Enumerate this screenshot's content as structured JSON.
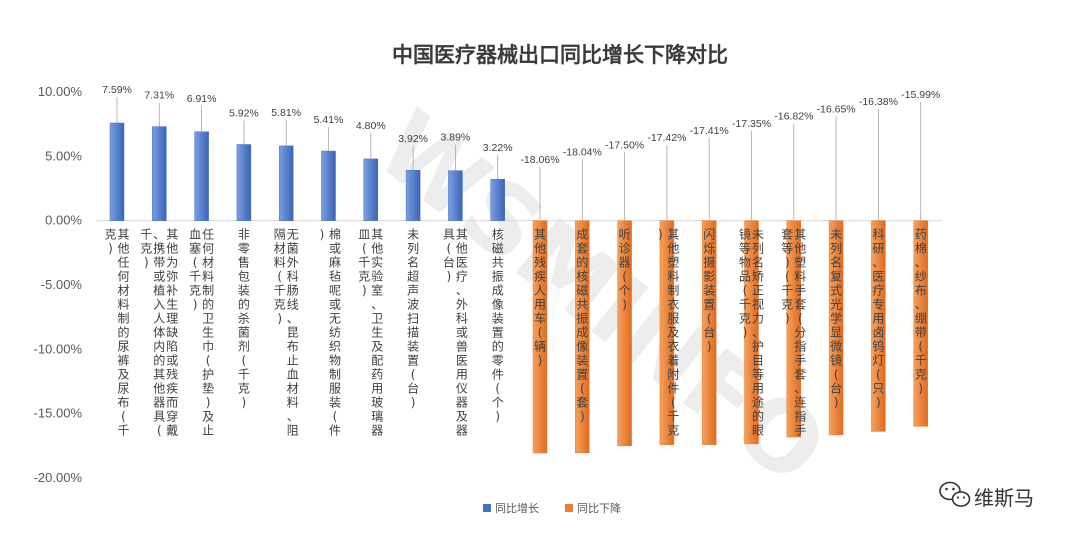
{
  "chart_data": {
    "type": "bar",
    "title": "中国医疗器械出口同比增长下降对比",
    "xlabel": "",
    "ylabel": "",
    "ylim": [
      -0.2,
      0.1
    ],
    "yticks": [
      "10.00%",
      "5.00%",
      "0.00%",
      "-5.00%",
      "-10.00%",
      "-15.00%",
      "-20.00%"
    ],
    "categories": [
      "其他任何材料制的尿裤及尿布(千克)",
      "其他为弥补生理缺陷或残疾而穿戴、携带或植入人体内的其他器具(千克)",
      "任何材料制的卫生巾(护垫)及止血塞(千克)",
      "非零售包装的杀菌剂(千克)",
      "无菌外科肠线、昆布止血材料、阻隔材料(千克)",
      "棉或麻毡呢或无纺织物制服装(件)",
      "其他实验室、卫生及配药用玻璃器皿(千克)",
      "未列名超声波扫描装置(台)",
      "其他医疗、外科或兽医用仪器及器具(台)",
      "核磁共振成像装置的零件(个)",
      "其他残疾人用车(辆)",
      "成套的核磁共振成像装置(套)",
      "听诊器(个)",
      "其他塑料制衣服及衣着附件(千克)",
      "闪烁摄影装置(台)",
      "未列名矫正视力、护目等用途的眼镜等物品(千克)",
      "其他塑料手套(分指手套、连指手套等)(千克)",
      "未列名复式光学显微镜(台)",
      "科研、医疗专用卤钨灯(只)",
      "药棉、纱布、绷带(千克)"
    ],
    "series": [
      {
        "name": "同比增长",
        "color": "#4472c4",
        "values": [
          0.0759,
          0.0731,
          0.0691,
          0.0592,
          0.0581,
          0.0541,
          0.048,
          0.0392,
          0.0389,
          0.0322,
          null,
          null,
          null,
          null,
          null,
          null,
          null,
          null,
          null,
          null
        ],
        "labels": [
          "7.59%",
          "7.31%",
          "6.91%",
          "5.92%",
          "5.81%",
          "5.41%",
          "4.80%",
          "3.92%",
          "3.89%",
          "3.22%",
          "",
          "",
          "",
          "",
          "",
          "",
          "",
          "",
          "",
          ""
        ]
      },
      {
        "name": "同比下降",
        "color": "#ed7d31",
        "values": [
          null,
          null,
          null,
          null,
          null,
          null,
          null,
          null,
          null,
          null,
          -0.1806,
          -0.1804,
          -0.175,
          -0.1742,
          -0.1741,
          -0.1735,
          -0.1682,
          -0.1665,
          -0.1638,
          -0.1599
        ],
        "labels": [
          "",
          "",
          "",
          "",
          "",
          "",
          "",
          "",
          "",
          "",
          "-18.06%",
          "-18.04%",
          "-17.50%",
          "-17.42%",
          "-17.41%",
          "-17.35%",
          "-16.82%",
          "-16.65%",
          "-16.38%",
          "-15.99%"
        ]
      }
    ],
    "legend": {
      "position": "bottom-center"
    }
  },
  "watermark": {
    "text": "维斯马",
    "icon": "wechat-icon"
  }
}
